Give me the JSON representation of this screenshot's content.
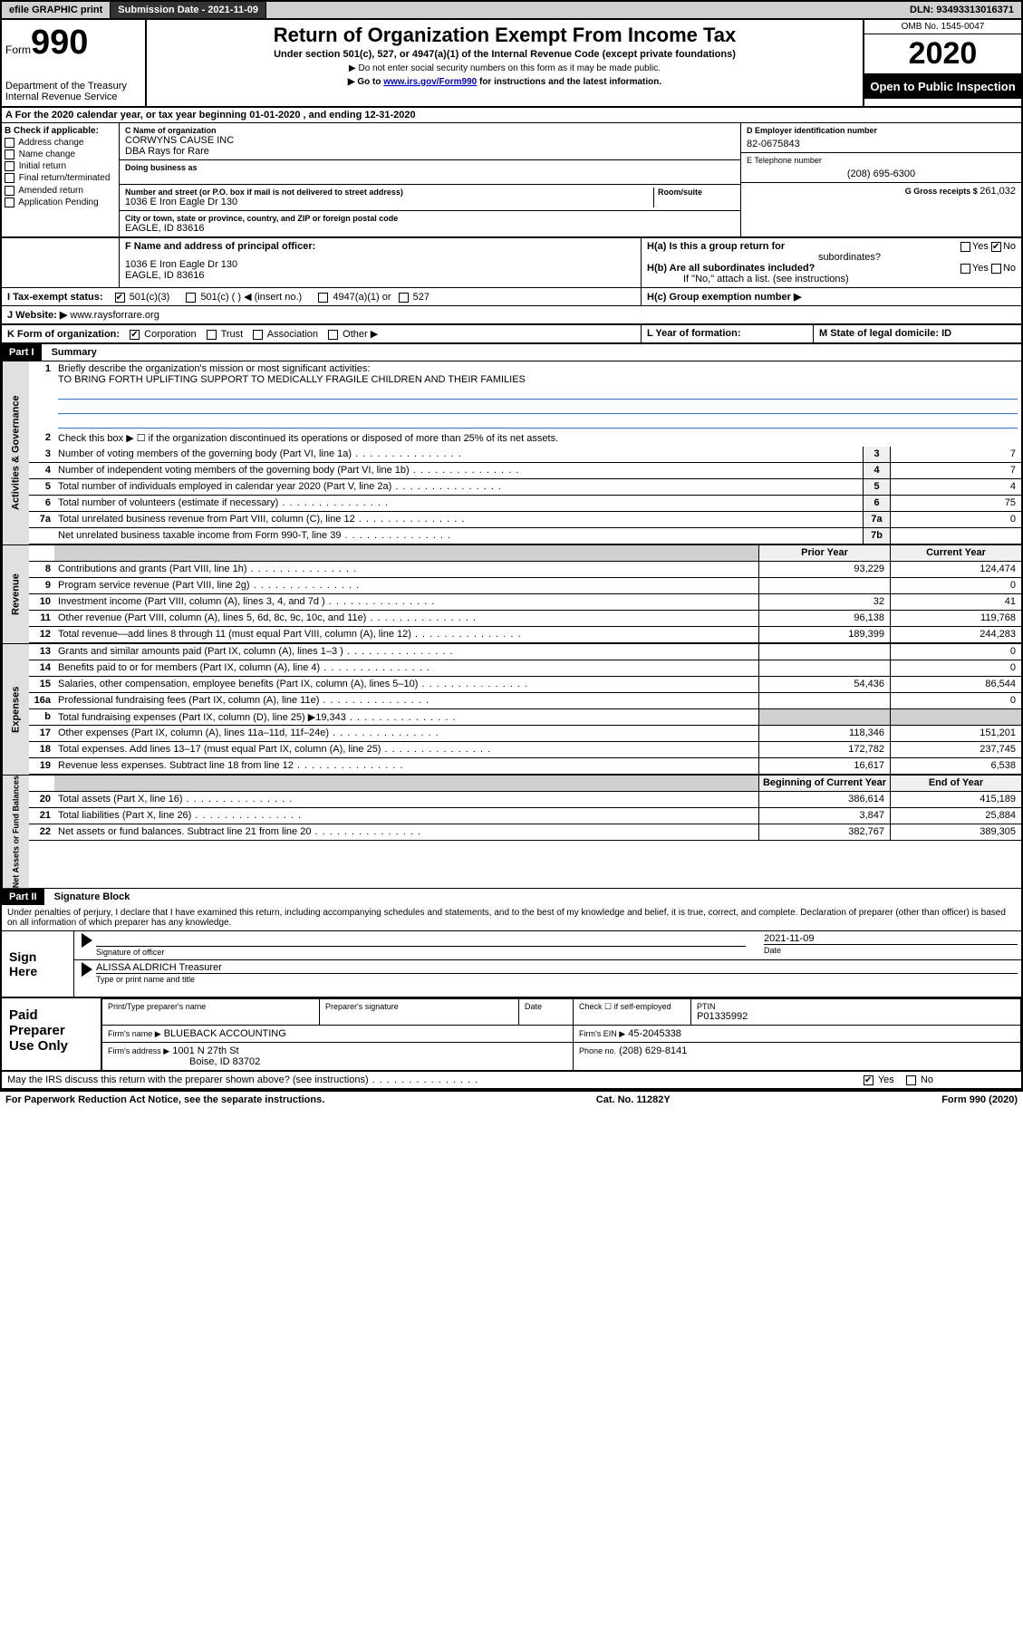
{
  "header_bar": {
    "efile": "efile GRAPHIC print",
    "submission": "Submission Date - 2021-11-09",
    "dln": "DLN: 93493313016371"
  },
  "top": {
    "form_label": "Form",
    "form_num": "990",
    "title": "Return of Organization Exempt From Income Tax",
    "subtitle": "Under section 501(c), 527, or 4947(a)(1) of the Internal Revenue Code (except private foundations)",
    "instr1": "▶ Do not enter social security numbers on this form as it may be made public.",
    "instr2_prefix": "▶ Go to ",
    "instr2_link": "www.irs.gov/Form990",
    "instr2_suffix": " for instructions and the latest information.",
    "dept": "Department of the Treasury",
    "irs": "Internal Revenue Service",
    "omb": "OMB No. 1545-0047",
    "year": "2020",
    "inspect": "Open to Public Inspection"
  },
  "row_a": {
    "text": "For the 2020 calendar year, or tax year beginning 01-01-2020     , and ending 12-31-2020"
  },
  "col_b": {
    "header": "B Check if applicable:",
    "items": [
      "Address change",
      "Name change",
      "Initial return",
      "Final return/terminated",
      "Amended return",
      "Application Pending"
    ]
  },
  "col_c": {
    "name_label": "C Name of organization",
    "name": "CORWYNS CAUSE INC",
    "dba": "DBA Rays for Rare",
    "dba_label": "Doing business as",
    "addr_label": "Number and street (or P.O. box if mail is not delivered to street address)",
    "room_label": "Room/suite",
    "addr": "1036 E Iron Eagle Dr 130",
    "city_label": "City or town, state or province, country, and ZIP or foreign postal code",
    "city": "EAGLE, ID  83616"
  },
  "col_d": {
    "ein_label": "D Employer identification number",
    "ein": "82-0675843",
    "phone_label": "E Telephone number",
    "phone": "(208) 695-6300",
    "gross_label": "G Gross receipts $ ",
    "gross": "261,032"
  },
  "row_f": {
    "label": "F  Name and address of principal officer:",
    "addr1": "1036 E Iron Eagle Dr 130",
    "addr2": "EAGLE, ID  83616"
  },
  "row_h": {
    "ha": "H(a)  Is this a group return for",
    "ha2": "subordinates?",
    "hb": "H(b)  Are all subordinates included?",
    "hb_note": "If \"No,\" attach a list. (see instructions)",
    "hc": "H(c)  Group exemption number ▶"
  },
  "row_i": {
    "label": "I   Tax-exempt status:",
    "opt1": "501(c)(3)",
    "opt2": "501(c) (  ) ◀ (insert no.)",
    "opt3": "4947(a)(1) or",
    "opt4": "527"
  },
  "row_j": {
    "label": "J   Website: ▶",
    "url": "www.raysforrare.org"
  },
  "row_k": {
    "label": "K Form of organization:",
    "opts": [
      "Corporation",
      "Trust",
      "Association",
      "Other ▶"
    ]
  },
  "row_l": {
    "label": "L Year of formation:"
  },
  "row_m": {
    "label": "M State of legal domicile: ID"
  },
  "part1": {
    "header": "Part I",
    "title": "Summary",
    "vert_labels": [
      "Activities & Governance",
      "Revenue",
      "Expenses",
      "Net Assets or Fund Balances"
    ],
    "line1": "Briefly describe the organization's mission or most significant activities:",
    "mission": "TO BRING FORTH UPLIFTING SUPPORT TO MEDICALLY FRAGILE CHILDREN AND THEIR FAMILIES",
    "line2": "Check this box ▶ ☐  if the organization discontinued its operations or disposed of more than 25% of its net assets.",
    "lines_top": [
      {
        "n": "3",
        "t": "Number of voting members of the governing body (Part VI, line 1a)",
        "box": "3",
        "v": "7"
      },
      {
        "n": "4",
        "t": "Number of independent voting members of the governing body (Part VI, line 1b)",
        "box": "4",
        "v": "7"
      },
      {
        "n": "5",
        "t": "Total number of individuals employed in calendar year 2020 (Part V, line 2a)",
        "box": "5",
        "v": "4"
      },
      {
        "n": "6",
        "t": "Total number of volunteers (estimate if necessary)",
        "box": "6",
        "v": "75"
      },
      {
        "n": "7a",
        "t": "Total unrelated business revenue from Part VIII, column (C), line 12",
        "box": "7a",
        "v": "0"
      },
      {
        "n": "",
        "t": "Net unrelated business taxable income from Form 990-T, line 39",
        "box": "7b",
        "v": ""
      }
    ],
    "col_headers": {
      "prior": "Prior Year",
      "current": "Current Year",
      "begin": "Beginning of Current Year",
      "end": "End of Year"
    },
    "revenue": [
      {
        "n": "8",
        "t": "Contributions and grants (Part VIII, line 1h)",
        "p": "93,229",
        "c": "124,474"
      },
      {
        "n": "9",
        "t": "Program service revenue (Part VIII, line 2g)",
        "p": "",
        "c": "0"
      },
      {
        "n": "10",
        "t": "Investment income (Part VIII, column (A), lines 3, 4, and 7d )",
        "p": "32",
        "c": "41"
      },
      {
        "n": "11",
        "t": "Other revenue (Part VIII, column (A), lines 5, 6d, 8c, 9c, 10c, and 11e)",
        "p": "96,138",
        "c": "119,768"
      },
      {
        "n": "12",
        "t": "Total revenue—add lines 8 through 11 (must equal Part VIII, column (A), line 12)",
        "p": "189,399",
        "c": "244,283"
      }
    ],
    "expenses": [
      {
        "n": "13",
        "t": "Grants and similar amounts paid (Part IX, column (A), lines 1–3 )",
        "p": "",
        "c": "0"
      },
      {
        "n": "14",
        "t": "Benefits paid to or for members (Part IX, column (A), line 4)",
        "p": "",
        "c": "0"
      },
      {
        "n": "15",
        "t": "Salaries, other compensation, employee benefits (Part IX, column (A), lines 5–10)",
        "p": "54,436",
        "c": "86,544"
      },
      {
        "n": "16a",
        "t": "Professional fundraising fees (Part IX, column (A), line 11e)",
        "p": "",
        "c": "0"
      },
      {
        "n": "b",
        "t": "Total fundraising expenses (Part IX, column (D), line 25) ▶19,343",
        "p": "shaded",
        "c": "shaded"
      },
      {
        "n": "17",
        "t": "Other expenses (Part IX, column (A), lines 11a–11d, 11f–24e)",
        "p": "118,346",
        "c": "151,201"
      },
      {
        "n": "18",
        "t": "Total expenses. Add lines 13–17 (must equal Part IX, column (A), line 25)",
        "p": "172,782",
        "c": "237,745"
      },
      {
        "n": "19",
        "t": "Revenue less expenses. Subtract line 18 from line 12",
        "p": "16,617",
        "c": "6,538"
      }
    ],
    "net": [
      {
        "n": "20",
        "t": "Total assets (Part X, line 16)",
        "p": "386,614",
        "c": "415,189"
      },
      {
        "n": "21",
        "t": "Total liabilities (Part X, line 26)",
        "p": "3,847",
        "c": "25,884"
      },
      {
        "n": "22",
        "t": "Net assets or fund balances. Subtract line 21 from line 20",
        "p": "382,767",
        "c": "389,305"
      }
    ]
  },
  "part2": {
    "header": "Part II",
    "title": "Signature Block",
    "penalties": "Under penalties of perjury, I declare that I have examined this return, including accompanying schedules and statements, and to the best of my knowledge and belief, it is true, correct, and complete. Declaration of preparer (other than officer) is based on all information of which preparer has any knowledge."
  },
  "sign": {
    "left": "Sign Here",
    "sig_officer": "Signature of officer",
    "date_label": "Date",
    "date": "2021-11-09",
    "name": "ALISSA ALDRICH  Treasurer",
    "name_label": "Type or print name and title"
  },
  "paid": {
    "left": "Paid Preparer Use Only",
    "h1": "Print/Type preparer's name",
    "h2": "Preparer's signature",
    "h3": "Date",
    "h4_pre": "Check ☐  if self-employed",
    "h5": "PTIN",
    "ptin": "P01335992",
    "firm_label": "Firm's name    ▶",
    "firm": "BLUEBACK ACCOUNTING",
    "ein_label": "Firm's EIN ▶",
    "ein": "45-2045338",
    "addr_label": "Firm's address ▶",
    "addr1": "1001 N 27th St",
    "addr2": "Boise, ID  83702",
    "phone_label": "Phone no.",
    "phone": "(208) 629-8141"
  },
  "discuss": {
    "text": "May the IRS discuss this return with the preparer shown above? (see instructions)",
    "yes": "Yes",
    "no": "No"
  },
  "footer": {
    "left": "For Paperwork Reduction Act Notice, see the separate instructions.",
    "mid": "Cat. No. 11282Y",
    "right": "Form 990 (2020)"
  }
}
